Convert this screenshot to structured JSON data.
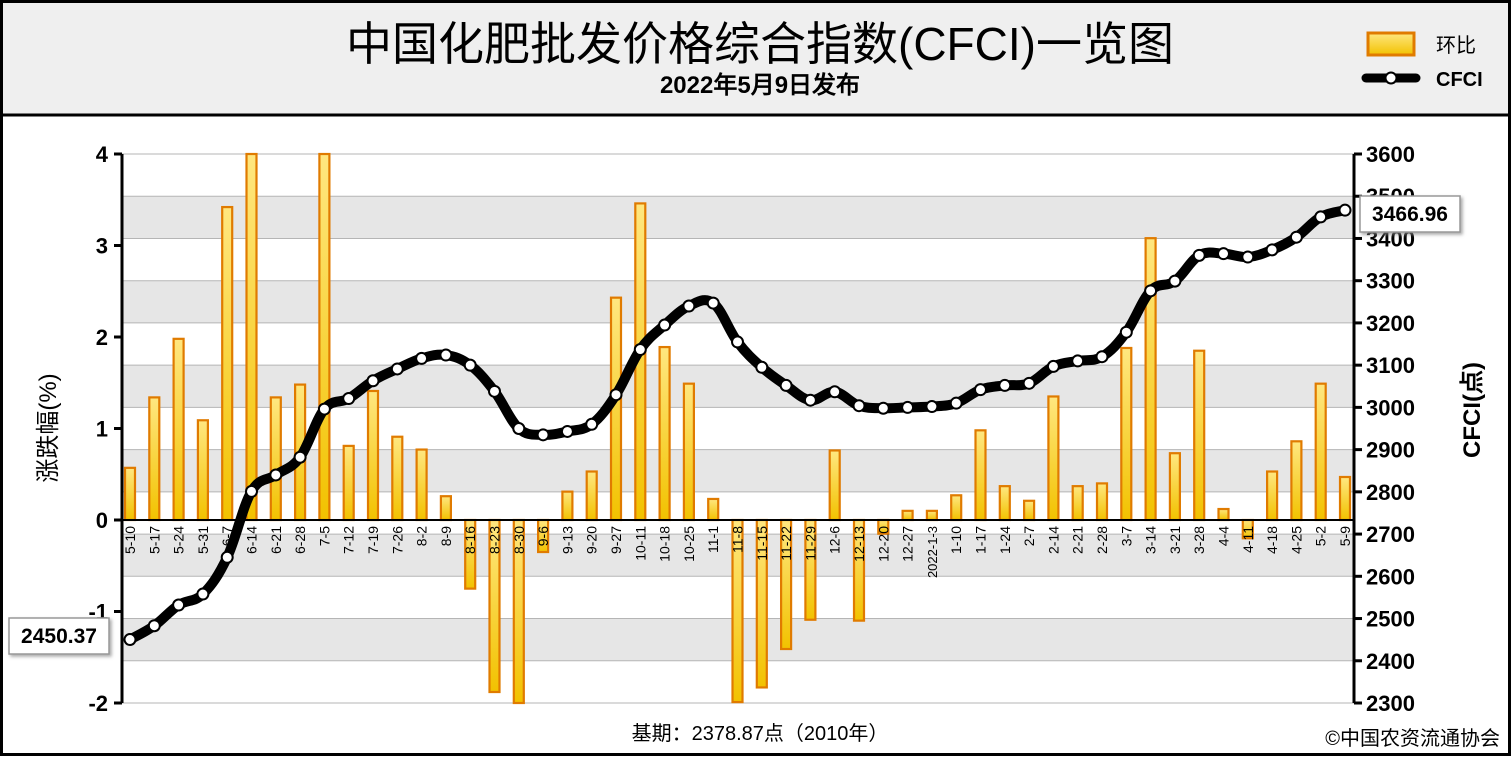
{
  "chart_data": {
    "type": "bar",
    "title": "中国化肥批发价格综合指数(CFCI)一览图",
    "subtitle": "2022年5月9日发布",
    "ylabel_left": "涨跌幅(%)",
    "ylabel_right": "CFCI(点)",
    "ylim_left": [
      -2,
      4
    ],
    "ylim_right": [
      2300,
      3600
    ],
    "yticks_left": [
      "-2",
      "-1",
      "0",
      "1",
      "2",
      "3",
      "4"
    ],
    "yticks_right": [
      "2300",
      "2400",
      "2500",
      "2600",
      "2700",
      "2800",
      "2900",
      "3000",
      "3100",
      "3200",
      "3300",
      "3400",
      "3500",
      "3600"
    ],
    "categories": [
      "5-10",
      "5-17",
      "5-24",
      "5-31",
      "6-7",
      "6-14",
      "6-21",
      "6-28",
      "7-5",
      "7-12",
      "7-19",
      "7-26",
      "8-2",
      "8-9",
      "8-16",
      "8-23",
      "8-30",
      "9-6",
      "9-13",
      "9-20",
      "9-27",
      "10-11",
      "10-18",
      "10-25",
      "11-1",
      "11-8",
      "11-15",
      "11-22",
      "11-29",
      "12-6",
      "12-13",
      "12-20",
      "12-27",
      "2022-1-3",
      "1-10",
      "1-17",
      "1-24",
      "2-7",
      "2-14",
      "2-21",
      "2-28",
      "3-7",
      "3-14",
      "3-21",
      "3-28",
      "4-4",
      "4-11",
      "4-18",
      "4-25",
      "5-2",
      "5-9"
    ],
    "series": [
      {
        "name": "环比",
        "type": "bar",
        "axis": "left",
        "values": [
          0.57,
          1.34,
          1.98,
          1.09,
          3.42,
          4.0,
          1.34,
          1.48,
          4.0,
          0.81,
          1.41,
          0.91,
          0.77,
          0.26,
          -0.75,
          -1.88,
          -2.0,
          -0.35,
          0.31,
          0.53,
          2.43,
          3.46,
          1.89,
          1.49,
          0.23,
          -1.99,
          -1.83,
          -1.41,
          -1.09,
          0.76,
          -1.1,
          -0.15,
          0.1,
          0.1,
          0.27,
          0.98,
          0.37,
          0.21,
          1.35,
          0.37,
          0.4,
          1.88,
          3.08,
          0.73,
          1.85,
          0.12,
          -0.2,
          0.53,
          0.86,
          1.49,
          0.47
        ]
      },
      {
        "name": "CFCI",
        "type": "line",
        "axis": "right",
        "values": [
          2450.37,
          2483,
          2532,
          2558,
          2645,
          2801,
          2840,
          2882,
          2996,
          3021,
          3063,
          3091,
          3116,
          3124,
          3100,
          3038,
          2950,
          2935,
          2943,
          2960,
          3030,
          3137,
          3195,
          3240,
          3247,
          3155,
          3095,
          3052,
          3017,
          3037,
          3004,
          2998,
          3000,
          3002,
          3010,
          3042,
          3052,
          3057,
          3097,
          3110,
          3120,
          3178,
          3276,
          3299,
          3360,
          3364,
          3356,
          3373,
          3403,
          3451,
          3466.96
        ]
      }
    ],
    "annotations": {
      "start_value": "2450.37",
      "end_value": "3466.96"
    },
    "legend": {
      "position": "top-right",
      "bar_label": "环比",
      "line_label": "CFCI"
    },
    "grid": true,
    "footer_base": "基期：2378.87点（2010年）",
    "footer_copyright": "©中国农资流通协会",
    "colors": {
      "bar_fill_top": "#ffe780",
      "bar_fill_bottom": "#f2c200",
      "bar_stroke": "#e07b00",
      "line": "#000000",
      "marker_fill": "#ffffff",
      "band": "#e6e6e6",
      "title_band": "#efefef"
    }
  }
}
